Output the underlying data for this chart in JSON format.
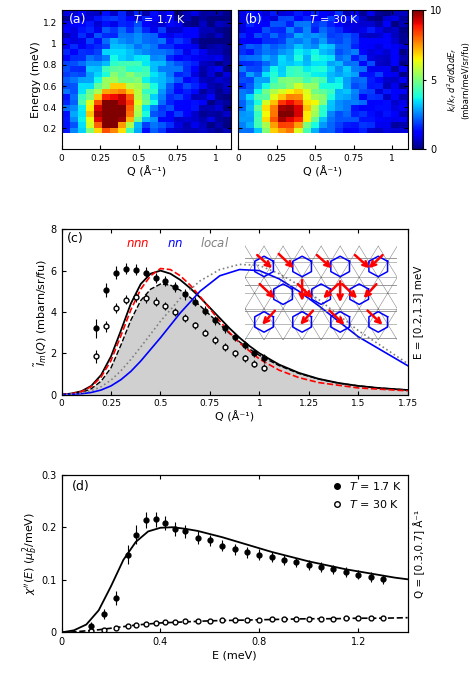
{
  "colorbar_vmin": 0,
  "colorbar_vmax": 10,
  "panel_ab_xlabel": "Q (Å⁻¹)",
  "panel_ab_ylabel": "Energy (meV)",
  "panel_c_xlabel": "Q (Å⁻¹)",
  "panel_c_ylabel": "$\\tilde{I}_m(Q)$ (mbarn/sr/fu)",
  "panel_c_xlim": [
    0,
    1.75
  ],
  "panel_c_ylim": [
    0,
    8
  ],
  "panel_c_yticks": [
    0,
    2,
    4,
    6,
    8
  ],
  "panel_c_xticks": [
    0,
    0.25,
    0.5,
    0.75,
    1,
    1.25,
    1.5,
    1.75
  ],
  "panel_c_right_label": "E = [0.2,1.3] meV",
  "panel_d_xlabel": "E (meV)",
  "panel_d_ylabel": "$\\chi''(E)$ ($\\mu_b^2$/meV)",
  "panel_d_xlim": [
    0,
    1.4
  ],
  "panel_d_ylim": [
    0,
    0.3
  ],
  "panel_d_yticks": [
    0,
    0.1,
    0.2,
    0.3
  ],
  "panel_d_xticks": [
    0,
    0.4,
    0.8,
    1.2
  ],
  "panel_d_right_label": "Q = [0.3,0.7] Å⁻¹",
  "panel_c_filled_x": [
    0.0,
    0.05,
    0.1,
    0.15,
    0.2,
    0.25,
    0.3,
    0.35,
    0.4,
    0.45,
    0.5,
    0.55,
    0.6,
    0.65,
    0.7,
    0.75,
    0.8,
    0.85,
    0.9,
    0.95,
    1.0,
    1.1,
    1.2,
    1.3,
    1.4,
    1.5,
    1.6,
    1.75
  ],
  "panel_c_filled_y": [
    0.0,
    0.03,
    0.1,
    0.28,
    0.65,
    1.3,
    2.4,
    3.6,
    4.55,
    5.1,
    5.35,
    5.3,
    5.05,
    4.7,
    4.3,
    3.85,
    3.4,
    2.95,
    2.55,
    2.2,
    1.9,
    1.4,
    1.02,
    0.75,
    0.55,
    0.42,
    0.32,
    0.22
  ],
  "panel_c_nnn_x": [
    0.0,
    0.05,
    0.1,
    0.15,
    0.2,
    0.25,
    0.3,
    0.35,
    0.4,
    0.45,
    0.5,
    0.55,
    0.6,
    0.65,
    0.7,
    0.75,
    0.8,
    0.85,
    0.9,
    1.0,
    1.1,
    1.2,
    1.3,
    1.5,
    1.75
  ],
  "panel_c_nnn_y": [
    0.0,
    0.04,
    0.14,
    0.38,
    0.85,
    1.65,
    2.85,
    4.1,
    5.1,
    5.75,
    6.1,
    6.05,
    5.75,
    5.3,
    4.75,
    4.15,
    3.55,
    3.0,
    2.5,
    1.72,
    1.18,
    0.82,
    0.58,
    0.32,
    0.18
  ],
  "panel_c_nn_x": [
    0.0,
    0.05,
    0.1,
    0.15,
    0.2,
    0.25,
    0.3,
    0.35,
    0.4,
    0.5,
    0.6,
    0.7,
    0.8,
    0.9,
    1.0,
    1.1,
    1.2,
    1.3,
    1.5,
    1.75
  ],
  "panel_c_nn_y": [
    0.0,
    0.01,
    0.04,
    0.1,
    0.22,
    0.42,
    0.72,
    1.12,
    1.62,
    2.75,
    3.95,
    5.0,
    5.75,
    6.05,
    6.0,
    5.6,
    5.0,
    4.3,
    2.8,
    1.4
  ],
  "panel_c_local_x": [
    0.0,
    0.05,
    0.1,
    0.15,
    0.2,
    0.25,
    0.3,
    0.35,
    0.4,
    0.5,
    0.6,
    0.7,
    0.8,
    0.9,
    1.0,
    1.1,
    1.2,
    1.3,
    1.5,
    1.75
  ],
  "panel_c_local_y": [
    0.0,
    0.02,
    0.07,
    0.18,
    0.38,
    0.7,
    1.15,
    1.7,
    2.3,
    3.55,
    4.65,
    5.5,
    6.05,
    6.3,
    6.25,
    5.85,
    5.3,
    4.6,
    3.1,
    1.5
  ],
  "panel_c_data17_x": [
    0.175,
    0.225,
    0.275,
    0.325,
    0.375,
    0.425,
    0.475,
    0.525,
    0.575,
    0.625,
    0.675,
    0.725,
    0.775,
    0.825,
    0.875,
    0.925,
    0.975,
    1.025
  ],
  "panel_c_data17_y": [
    3.2,
    5.05,
    5.9,
    6.1,
    6.05,
    5.9,
    5.65,
    5.5,
    5.2,
    4.85,
    4.5,
    4.05,
    3.6,
    3.2,
    2.8,
    2.4,
    2.0,
    1.75
  ],
  "panel_c_data17_ye": [
    0.45,
    0.35,
    0.3,
    0.28,
    0.28,
    0.28,
    0.25,
    0.25,
    0.25,
    0.25,
    0.22,
    0.22,
    0.22,
    0.2,
    0.2,
    0.2,
    0.2,
    0.2
  ],
  "panel_c_data30_x": [
    0.175,
    0.225,
    0.275,
    0.325,
    0.375,
    0.425,
    0.475,
    0.525,
    0.575,
    0.625,
    0.675,
    0.725,
    0.775,
    0.825,
    0.875,
    0.925,
    0.975,
    1.025
  ],
  "panel_c_data30_y": [
    1.85,
    3.3,
    4.2,
    4.6,
    4.7,
    4.65,
    4.5,
    4.3,
    4.0,
    3.7,
    3.35,
    3.0,
    2.65,
    2.3,
    2.0,
    1.75,
    1.5,
    1.3
  ],
  "panel_c_data30_ye": [
    0.3,
    0.28,
    0.25,
    0.22,
    0.22,
    0.22,
    0.2,
    0.2,
    0.2,
    0.18,
    0.18,
    0.18,
    0.18,
    0.18,
    0.18,
    0.16,
    0.16,
    0.16
  ],
  "panel_c_fit17_x": [
    0.0,
    0.05,
    0.1,
    0.15,
    0.2,
    0.25,
    0.3,
    0.35,
    0.4,
    0.45,
    0.5,
    0.55,
    0.6,
    0.65,
    0.7,
    0.75,
    0.8,
    0.85,
    0.9,
    0.95,
    1.0,
    1.1,
    1.2,
    1.3,
    1.4,
    1.5,
    1.6,
    1.75
  ],
  "panel_c_fit17_y": [
    0.0,
    0.05,
    0.16,
    0.42,
    0.95,
    1.85,
    3.1,
    4.4,
    5.35,
    5.85,
    6.0,
    5.85,
    5.55,
    5.15,
    4.7,
    4.2,
    3.7,
    3.2,
    2.75,
    2.35,
    2.0,
    1.45,
    1.05,
    0.76,
    0.56,
    0.42,
    0.32,
    0.22
  ],
  "panel_d_data17_x": [
    0.12,
    0.17,
    0.22,
    0.27,
    0.3,
    0.34,
    0.38,
    0.42,
    0.46,
    0.5,
    0.55,
    0.6,
    0.65,
    0.7,
    0.75,
    0.8,
    0.85,
    0.9,
    0.95,
    1.0,
    1.05,
    1.1,
    1.15,
    1.2,
    1.25,
    1.3
  ],
  "panel_d_data17_y": [
    0.013,
    0.035,
    0.065,
    0.148,
    0.186,
    0.213,
    0.215,
    0.208,
    0.197,
    0.192,
    0.18,
    0.175,
    0.165,
    0.158,
    0.152,
    0.148,
    0.143,
    0.138,
    0.133,
    0.128,
    0.124,
    0.12,
    0.115,
    0.11,
    0.105,
    0.101
  ],
  "panel_d_data17_ye": [
    0.006,
    0.009,
    0.013,
    0.018,
    0.018,
    0.015,
    0.014,
    0.014,
    0.013,
    0.012,
    0.012,
    0.011,
    0.011,
    0.011,
    0.01,
    0.01,
    0.01,
    0.01,
    0.009,
    0.009,
    0.009,
    0.009,
    0.009,
    0.009,
    0.009,
    0.009
  ],
  "panel_d_data30_x": [
    0.12,
    0.17,
    0.22,
    0.27,
    0.3,
    0.34,
    0.38,
    0.42,
    0.46,
    0.5,
    0.55,
    0.6,
    0.65,
    0.7,
    0.75,
    0.8,
    0.85,
    0.9,
    0.95,
    1.0,
    1.05,
    1.1,
    1.15,
    1.2,
    1.25,
    1.3
  ],
  "panel_d_data30_y": [
    0.002,
    0.005,
    0.009,
    0.012,
    0.014,
    0.016,
    0.018,
    0.019,
    0.02,
    0.021,
    0.022,
    0.022,
    0.023,
    0.023,
    0.024,
    0.024,
    0.025,
    0.025,
    0.025,
    0.026,
    0.026,
    0.026,
    0.027,
    0.027,
    0.027,
    0.027
  ],
  "panel_d_fit17_x": [
    0.0,
    0.05,
    0.1,
    0.15,
    0.2,
    0.25,
    0.3,
    0.35,
    0.4,
    0.45,
    0.5,
    0.55,
    0.6,
    0.65,
    0.7,
    0.75,
    0.8,
    0.85,
    0.9,
    0.95,
    1.0,
    1.05,
    1.1,
    1.15,
    1.2,
    1.25,
    1.3,
    1.35,
    1.4
  ],
  "panel_d_fit17_y": [
    0.0,
    0.004,
    0.015,
    0.042,
    0.088,
    0.138,
    0.172,
    0.192,
    0.199,
    0.2,
    0.197,
    0.193,
    0.187,
    0.181,
    0.174,
    0.167,
    0.16,
    0.153,
    0.147,
    0.141,
    0.135,
    0.13,
    0.125,
    0.12,
    0.116,
    0.112,
    0.108,
    0.104,
    0.101
  ],
  "panel_d_fit30_x": [
    0.0,
    0.05,
    0.1,
    0.15,
    0.2,
    0.25,
    0.3,
    0.35,
    0.4,
    0.5,
    0.6,
    0.7,
    0.8,
    0.9,
    1.0,
    1.1,
    1.2,
    1.3,
    1.4
  ],
  "panel_d_fit30_y": [
    0.0,
    0.001,
    0.003,
    0.005,
    0.008,
    0.011,
    0.014,
    0.016,
    0.018,
    0.02,
    0.022,
    0.023,
    0.024,
    0.025,
    0.026,
    0.026,
    0.027,
    0.027,
    0.028
  ]
}
